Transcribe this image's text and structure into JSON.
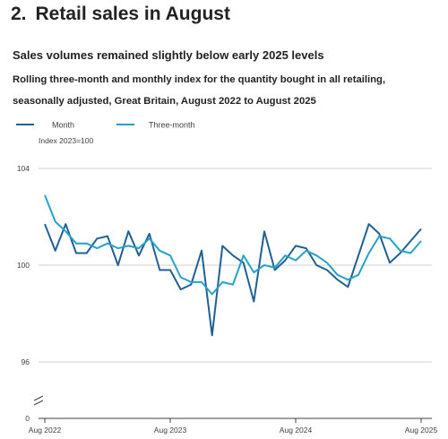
{
  "section": {
    "number": "2.",
    "title": "Retail sales in August"
  },
  "colors": {
    "month": "#206095",
    "three_month": "#27a0cc",
    "grid": "#d0d0d0",
    "text": "#414042"
  },
  "chart_data": {
    "type": "line",
    "title": "Sales volumes remained slightly below early 2025 levels",
    "subtitle": "Rolling three-month and monthly index for the quantity bought in all retailing, seasonally adjusted, Great Britain, August 2022 to August 2025",
    "ylabel": "Index 2023=100",
    "xlabel": "",
    "ylim": [
      0,
      104
    ],
    "y_axis_break": true,
    "y_ticks": [
      0,
      96,
      100,
      104
    ],
    "x_ticks": [
      "Aug 2022",
      "Aug 2023",
      "Aug 2024",
      "Aug 2025"
    ],
    "legend_position": "top-left",
    "grid": true,
    "x": [
      "Aug 2022",
      "Sep 2022",
      "Oct 2022",
      "Nov 2022",
      "Dec 2022",
      "Jan 2023",
      "Feb 2023",
      "Mar 2023",
      "Apr 2023",
      "May 2023",
      "Jun 2023",
      "Jul 2023",
      "Aug 2023",
      "Sep 2023",
      "Oct 2023",
      "Nov 2023",
      "Dec 2023",
      "Jan 2024",
      "Feb 2024",
      "Mar 2024",
      "Apr 2024",
      "May 2024",
      "Jun 2024",
      "Jul 2024",
      "Aug 2024",
      "Sep 2024",
      "Oct 2024",
      "Nov 2024",
      "Dec 2024",
      "Jan 2025",
      "Feb 2025",
      "Mar 2025",
      "Apr 2025",
      "May 2025",
      "Jun 2025",
      "Jul 2025",
      "Aug 2025"
    ],
    "series": [
      {
        "name": "Month",
        "values": [
          101.7,
          100.6,
          101.7,
          100.5,
          100.5,
          101.1,
          101.2,
          100.0,
          101.4,
          100.4,
          101.3,
          99.8,
          99.8,
          99.0,
          99.2,
          100.6,
          97.1,
          100.8,
          100.4,
          100.1,
          98.5,
          101.4,
          99.8,
          100.2,
          100.8,
          100.7,
          100.0,
          99.8,
          99.4,
          99.1,
          100.4,
          101.7,
          101.3,
          100.1,
          100.5,
          101.0,
          101.5
        ]
      },
      {
        "name": "Three-month",
        "values": [
          102.9,
          101.8,
          101.4,
          100.9,
          100.9,
          100.7,
          100.9,
          100.7,
          100.8,
          100.7,
          101.1,
          100.6,
          100.4,
          99.5,
          99.3,
          99.3,
          98.8,
          99.3,
          99.2,
          100.4,
          99.7,
          100.0,
          99.9,
          100.4,
          100.2,
          100.6,
          100.4,
          100.1,
          99.6,
          99.4,
          99.6,
          100.5,
          101.2,
          101.1,
          100.6,
          100.5,
          101.0
        ]
      }
    ]
  }
}
